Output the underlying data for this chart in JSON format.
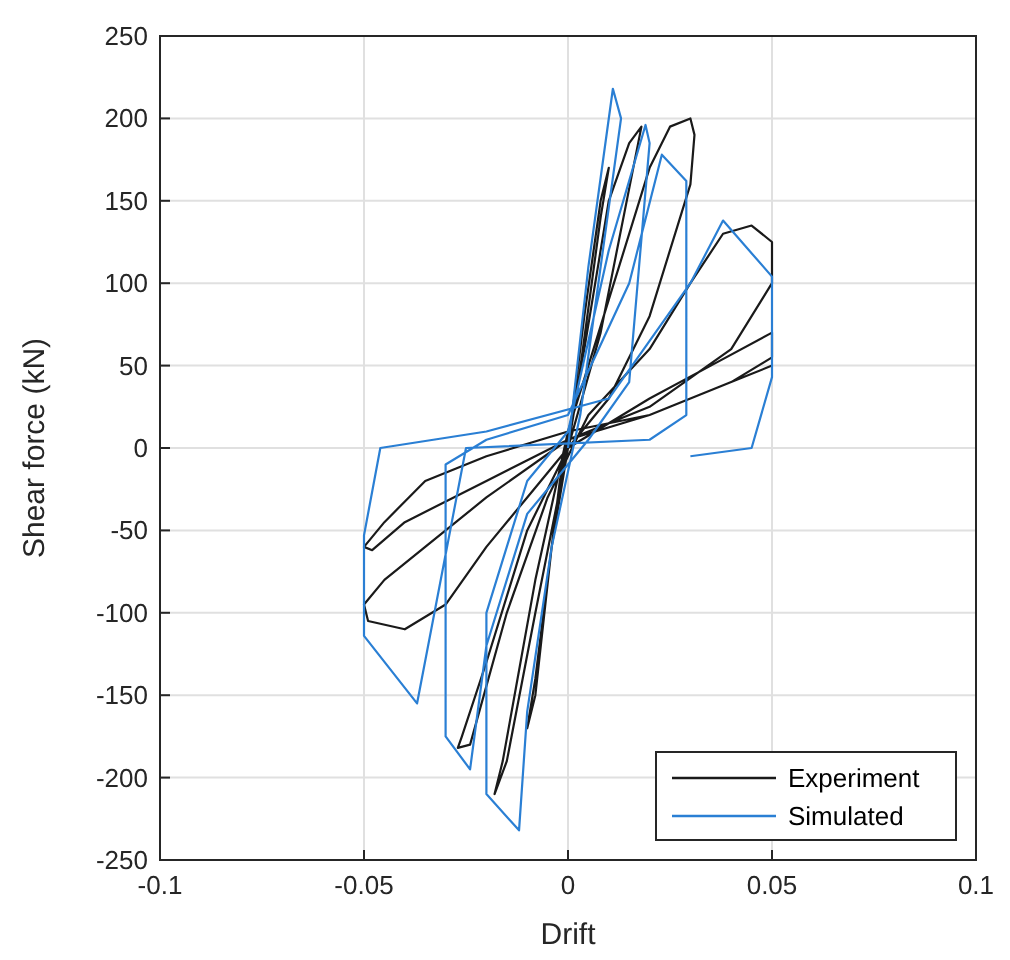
{
  "chart_data": {
    "type": "line",
    "xlabel": "Drift",
    "ylabel": "Shear force (kN)",
    "xlim": [
      -0.1,
      0.1
    ],
    "ylim": [
      -250,
      250
    ],
    "xticks": [
      -0.1,
      -0.05,
      0,
      0.05,
      0.1
    ],
    "yticks": [
      -250,
      -200,
      -150,
      -100,
      -50,
      0,
      50,
      100,
      150,
      200,
      250
    ],
    "grid": true,
    "legend": "bottom right",
    "series": [
      {
        "name": "Experiment",
        "color": "#1a1a1a",
        "x": [
          0,
          0.004,
          0.008,
          0.01,
          0.008,
          0.002,
          -0.004,
          -0.008,
          -0.01,
          -0.008,
          -0.002,
          0.004,
          0.01,
          0.015,
          0.018,
          0.016,
          0.008,
          0,
          -0.008,
          -0.015,
          -0.018,
          -0.016,
          -0.008,
          0,
          0.01,
          0.02,
          0.025,
          0.03,
          0.031,
          0.03,
          0.02,
          0.01,
          0,
          -0.01,
          -0.02,
          -0.026,
          -0.027,
          -0.024,
          -0.015,
          -0.005,
          0.005,
          0.02,
          0.03,
          0.038,
          0.045,
          0.05,
          0.05,
          0.04,
          0.02,
          0,
          -0.02,
          -0.035,
          -0.045,
          -0.05,
          -0.049,
          -0.04,
          -0.03,
          -0.02,
          -0.01,
          0,
          0.02,
          0.035,
          0.05,
          0.05,
          0.04,
          0.02,
          0,
          -0.02,
          -0.035,
          -0.045,
          -0.05,
          -0.048,
          -0.04,
          -0.02,
          0,
          0.02,
          0.04,
          0.05
        ],
        "values": [
          0,
          80,
          150,
          170,
          140,
          30,
          -60,
          -150,
          -170,
          -140,
          -20,
          60,
          150,
          185,
          195,
          170,
          70,
          0,
          -100,
          -190,
          -210,
          -190,
          -80,
          10,
          90,
          170,
          195,
          200,
          190,
          160,
          80,
          30,
          0,
          -50,
          -130,
          -175,
          -182,
          -180,
          -100,
          -30,
          20,
          60,
          100,
          130,
          135,
          125,
          100,
          60,
          25,
          5,
          -30,
          -60,
          -80,
          -95,
          -105,
          -110,
          -95,
          -60,
          -30,
          0,
          30,
          50,
          70,
          55,
          40,
          20,
          10,
          -5,
          -20,
          -45,
          -60,
          -62,
          -45,
          -20,
          5,
          20,
          40,
          50
        ]
      },
      {
        "name": "Simulated",
        "color": "#2a7fd4",
        "x": [
          0,
          0.005,
          0.011,
          0.013,
          0.003,
          -0.004,
          -0.01,
          -0.012,
          -0.02,
          -0.02,
          -0.01,
          0,
          0.01,
          0.019,
          0.02,
          0.015,
          0.005,
          -0.01,
          -0.02,
          -0.024,
          -0.03,
          -0.03,
          -0.02,
          0,
          0.015,
          0.023,
          0.029,
          0.029,
          0.02,
          -0.025,
          -0.037,
          -0.05,
          -0.05,
          -0.046,
          -0.02,
          0.01,
          0.03,
          0.038,
          0.05,
          0.05,
          0.045,
          0.03
        ],
        "values": [
          0,
          110,
          218,
          200,
          20,
          -60,
          -160,
          -232,
          -210,
          -100,
          -20,
          10,
          120,
          196,
          185,
          40,
          5,
          -40,
          -120,
          -195,
          -175,
          -10,
          5,
          20,
          100,
          178,
          162,
          20,
          5,
          0,
          -155,
          -114,
          -53,
          0,
          10,
          30,
          100,
          138,
          104,
          43,
          0,
          -5
        ]
      }
    ]
  }
}
